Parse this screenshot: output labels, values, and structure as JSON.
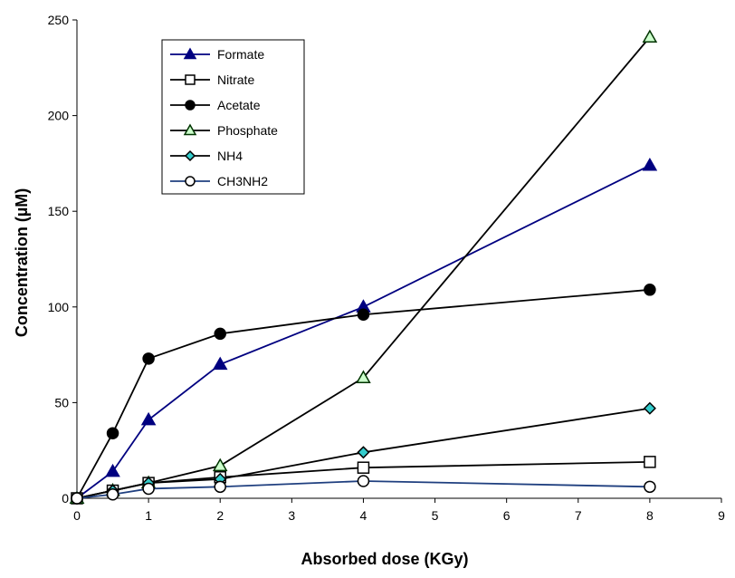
{
  "chart_data": {
    "type": "line",
    "title": "",
    "xlabel": "Absorbed dose (KGy)",
    "ylabel": "Concentration (µM)",
    "xlim": [
      0,
      9
    ],
    "ylim": [
      0,
      250
    ],
    "x_ticks": [
      0,
      1,
      2,
      3,
      4,
      5,
      6,
      7,
      8,
      9
    ],
    "y_ticks": [
      0,
      50,
      100,
      150,
      200,
      250
    ],
    "grid": false,
    "legend_position": "top-left",
    "series": [
      {
        "name": "Formate",
        "marker": "triangle",
        "line_color": "#000080",
        "marker_fill": "#000080",
        "marker_stroke": "#000080",
        "points": [
          [
            0,
            0
          ],
          [
            0.5,
            14
          ],
          [
            1,
            41
          ],
          [
            2,
            70
          ],
          [
            4,
            100
          ],
          [
            8,
            174
          ]
        ]
      },
      {
        "name": "Nitrate",
        "marker": "square",
        "line_color": "#000000",
        "marker_fill": "#ffffff",
        "marker_stroke": "#000000",
        "points": [
          [
            0,
            0
          ],
          [
            0.5,
            4
          ],
          [
            1,
            8
          ],
          [
            2,
            11
          ],
          [
            4,
            16
          ],
          [
            8,
            19
          ]
        ]
      },
      {
        "name": "Acetate",
        "marker": "circle",
        "line_color": "#000000",
        "marker_fill": "#000000",
        "marker_stroke": "#000000",
        "points": [
          [
            0,
            0
          ],
          [
            0.5,
            34
          ],
          [
            1,
            73
          ],
          [
            2,
            86
          ],
          [
            4,
            96
          ],
          [
            8,
            109
          ]
        ]
      },
      {
        "name": "Phosphate",
        "marker": "triangle",
        "line_color": "#000000",
        "marker_fill": "#ccffcc",
        "marker_stroke": "#003300",
        "points": [
          [
            0,
            0
          ],
          [
            0.5,
            4
          ],
          [
            1,
            8
          ],
          [
            2,
            17
          ],
          [
            4,
            63
          ],
          [
            8,
            241
          ]
        ]
      },
      {
        "name": "NH4",
        "marker": "diamond",
        "line_color": "#000000",
        "marker_fill": "#33cccc",
        "marker_stroke": "#000000",
        "points": [
          [
            0,
            0
          ],
          [
            0.5,
            4
          ],
          [
            1,
            8
          ],
          [
            2,
            10
          ],
          [
            4,
            24
          ],
          [
            8,
            47
          ]
        ]
      },
      {
        "name": "CH3NH2",
        "marker": "circle",
        "line_color": "#1f3f7f",
        "marker_fill": "#ffffff",
        "marker_stroke": "#000000",
        "points": [
          [
            0,
            0
          ],
          [
            0.5,
            2
          ],
          [
            1,
            5
          ],
          [
            2,
            6
          ],
          [
            4,
            9
          ],
          [
            8,
            6
          ]
        ]
      }
    ]
  }
}
